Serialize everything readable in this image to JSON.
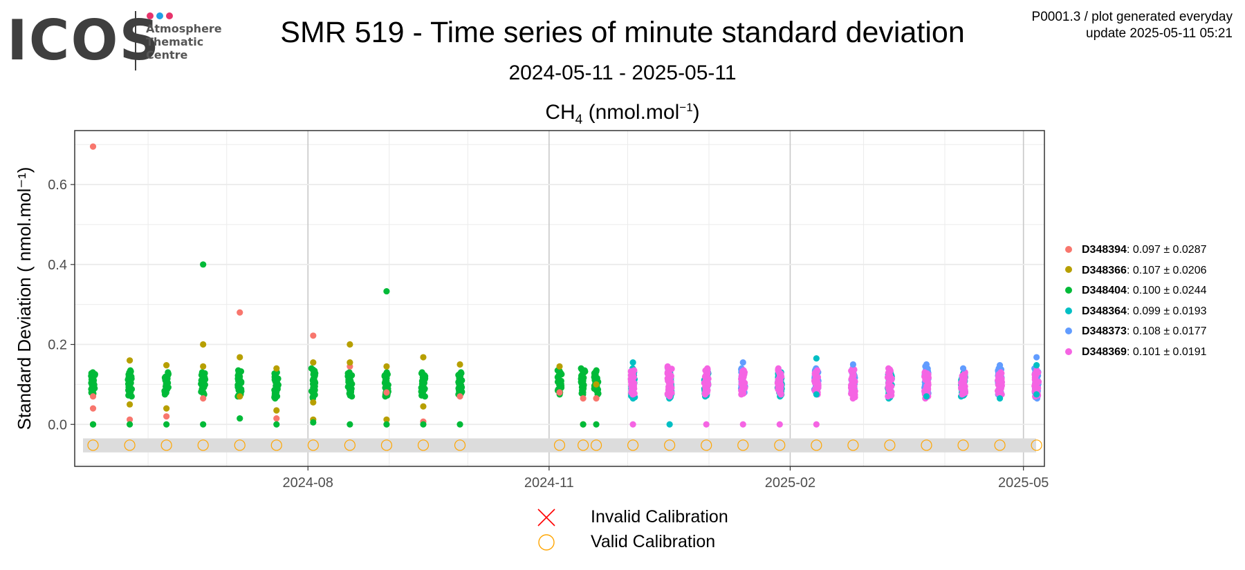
{
  "logo": {
    "text": "ICOS",
    "lines": [
      "Atmosphere",
      "Thematic",
      "Centre"
    ],
    "dot_colors": [
      "#e6336b",
      "#1f9fe6",
      "#e6336b"
    ]
  },
  "header": {
    "title": "SMR 519 - Time series of minute standard deviation",
    "subtitle": "2024-05-11 - 2025-05-11",
    "var_main": "CH",
    "var_sub": "4",
    "var_unit": " (nmol.mol",
    "var_sup": "−1",
    "var_close": ")",
    "meta_line1": "P0001.3 / plot generated everyday",
    "meta_line2": "update  2025-05-11 05:21"
  },
  "chart_data": {
    "type": "scatter",
    "ylabel": "Standard Deviation ( nmol.mol⁻¹)",
    "xlim": [
      "2024-05-04",
      "2025-05-09"
    ],
    "ylim": [
      -0.105,
      0.735
    ],
    "x_ticks": [
      {
        "date": "2024-08-01",
        "label": "2024-08"
      },
      {
        "date": "2024-11-01",
        "label": "2024-11"
      },
      {
        "date": "2025-02-01",
        "label": "2025-02"
      },
      {
        "date": "2025-05-01",
        "label": "2025-05"
      }
    ],
    "y_ticks": [
      0.0,
      0.2,
      0.4,
      0.6
    ],
    "y_tick_labels": [
      "0.0",
      "0.2",
      "0.4",
      "0.6"
    ],
    "grid": true,
    "legend_position": "right",
    "series": [
      {
        "name": "D348394",
        "color": "#f8766d",
        "mean": "0.097",
        "sd": "0.0287",
        "points": [
          [
            "2024-05-11",
            0.695
          ],
          [
            "2024-05-11",
            0.07
          ],
          [
            "2024-05-11",
            0.04
          ],
          [
            "2024-05-25",
            0.012
          ],
          [
            "2024-06-08",
            0.02
          ],
          [
            "2024-06-22",
            0.065
          ],
          [
            "2024-07-06",
            0.28
          ],
          [
            "2024-07-20",
            0.015
          ],
          [
            "2024-08-03",
            0.222
          ],
          [
            "2024-08-17",
            0.145
          ],
          [
            "2024-08-31",
            0.08
          ],
          [
            "2024-09-14",
            0.007
          ],
          [
            "2024-09-28",
            0.07
          ],
          [
            "2024-11-05",
            0.08
          ],
          [
            "2024-11-14",
            0.065
          ],
          [
            "2024-11-19",
            0.065
          ]
        ]
      },
      {
        "name": "D348366",
        "color": "#b79f00",
        "mean": "0.107",
        "sd": "0.0206",
        "points": [
          [
            "2024-05-11",
            0.0
          ],
          [
            "2024-05-25",
            0.16
          ],
          [
            "2024-05-25",
            0.05
          ],
          [
            "2024-06-08",
            0.148
          ],
          [
            "2024-06-08",
            0.04
          ],
          [
            "2024-06-22",
            0.2
          ],
          [
            "2024-06-22",
            0.145
          ],
          [
            "2024-07-06",
            0.168
          ],
          [
            "2024-07-06",
            0.07
          ],
          [
            "2024-07-20",
            0.14
          ],
          [
            "2024-07-20",
            0.035
          ],
          [
            "2024-08-03",
            0.155
          ],
          [
            "2024-08-03",
            0.055
          ],
          [
            "2024-08-03",
            0.012
          ],
          [
            "2024-08-17",
            0.2
          ],
          [
            "2024-08-17",
            0.155
          ],
          [
            "2024-08-31",
            0.145
          ],
          [
            "2024-08-31",
            0.012
          ],
          [
            "2024-09-14",
            0.168
          ],
          [
            "2024-09-14",
            0.045
          ],
          [
            "2024-09-28",
            0.15
          ],
          [
            "2024-11-05",
            0.145
          ],
          [
            "2024-11-14",
            0.0
          ],
          [
            "2024-11-19",
            0.1
          ]
        ]
      },
      {
        "name": "D348404",
        "color": "#00ba38",
        "mean": "0.100",
        "sd": "0.0244",
        "points": [
          [
            "2024-05-11",
            0.0
          ],
          [
            "2024-05-25",
            0.0
          ],
          [
            "2024-06-08",
            0.0
          ],
          [
            "2024-06-22",
            0.4
          ],
          [
            "2024-06-22",
            0.0
          ],
          [
            "2024-07-06",
            0.015
          ],
          [
            "2024-07-20",
            0.0
          ],
          [
            "2024-08-03",
            0.005
          ],
          [
            "2024-08-17",
            0.0
          ],
          [
            "2024-08-31",
            0.333
          ],
          [
            "2024-08-31",
            0.0
          ],
          [
            "2024-09-14",
            0.0
          ],
          [
            "2024-09-28",
            0.0
          ],
          [
            "2024-11-14",
            0.0
          ],
          [
            "2024-11-19",
            0.0
          ]
        ]
      },
      {
        "name": "D348364",
        "color": "#00bfc4",
        "mean": "0.099",
        "sd": "0.0193",
        "points": [
          [
            "2024-12-03",
            0.155
          ],
          [
            "2024-12-17",
            0.0
          ],
          [
            "2025-02-11",
            0.165
          ],
          [
            "2025-02-11",
            0.075
          ],
          [
            "2025-03-25",
            0.07
          ],
          [
            "2025-04-22",
            0.065
          ],
          [
            "2025-05-06",
            0.148
          ],
          [
            "2025-05-06",
            0.075
          ]
        ]
      },
      {
        "name": "D348373",
        "color": "#619cff",
        "mean": "0.108",
        "sd": "0.0177",
        "points": [
          [
            "2025-01-14",
            0.155
          ],
          [
            "2025-02-25",
            0.15
          ],
          [
            "2025-03-25",
            0.15
          ],
          [
            "2025-04-08",
            0.14
          ],
          [
            "2025-04-22",
            0.148
          ],
          [
            "2025-05-06",
            0.168
          ]
        ]
      },
      {
        "name": "D348369",
        "color": "#f564e3",
        "mean": "0.101",
        "sd": "0.0191",
        "points": [
          [
            "2024-12-03",
            0.0
          ],
          [
            "2024-12-31",
            0.0
          ],
          [
            "2025-01-14",
            0.0
          ],
          [
            "2025-01-28",
            0.0
          ],
          [
            "2025-02-11",
            0.0
          ]
        ]
      }
    ],
    "clusters": [
      {
        "date": "2024-05-11",
        "color": "#00ba38",
        "min": 0.075,
        "max": 0.13
      },
      {
        "date": "2024-05-25",
        "color": "#00ba38",
        "min": 0.07,
        "max": 0.135
      },
      {
        "date": "2024-06-08",
        "color": "#00ba38",
        "min": 0.075,
        "max": 0.13
      },
      {
        "date": "2024-06-22",
        "color": "#00ba38",
        "min": 0.075,
        "max": 0.13
      },
      {
        "date": "2024-07-06",
        "color": "#00ba38",
        "min": 0.07,
        "max": 0.135
      },
      {
        "date": "2024-07-20",
        "color": "#00ba38",
        "min": 0.065,
        "max": 0.13
      },
      {
        "date": "2024-08-03",
        "color": "#00ba38",
        "min": 0.065,
        "max": 0.14
      },
      {
        "date": "2024-08-17",
        "color": "#00ba38",
        "min": 0.07,
        "max": 0.13
      },
      {
        "date": "2024-08-31",
        "color": "#00ba38",
        "min": 0.07,
        "max": 0.13
      },
      {
        "date": "2024-09-14",
        "color": "#00ba38",
        "min": 0.07,
        "max": 0.13
      },
      {
        "date": "2024-09-28",
        "color": "#00ba38",
        "min": 0.075,
        "max": 0.13
      },
      {
        "date": "2024-11-05",
        "color": "#00ba38",
        "min": 0.075,
        "max": 0.135
      },
      {
        "date": "2024-11-14",
        "color": "#00ba38",
        "min": 0.075,
        "max": 0.14
      },
      {
        "date": "2024-11-19",
        "color": "#00ba38",
        "min": 0.075,
        "max": 0.135
      },
      {
        "date": "2024-12-03",
        "color": "#00bfc4",
        "min": 0.065,
        "max": 0.14
      },
      {
        "date": "2024-12-03",
        "color": "#f564e3",
        "min": 0.075,
        "max": 0.135
      },
      {
        "date": "2024-12-17",
        "color": "#00bfc4",
        "min": 0.065,
        "max": 0.14
      },
      {
        "date": "2024-12-17",
        "color": "#f564e3",
        "min": 0.07,
        "max": 0.145
      },
      {
        "date": "2024-12-31",
        "color": "#00bfc4",
        "min": 0.07,
        "max": 0.13
      },
      {
        "date": "2024-12-31",
        "color": "#f564e3",
        "min": 0.075,
        "max": 0.14
      },
      {
        "date": "2025-01-14",
        "color": "#619cff",
        "min": 0.08,
        "max": 0.14
      },
      {
        "date": "2025-01-14",
        "color": "#f564e3",
        "min": 0.075,
        "max": 0.135
      },
      {
        "date": "2025-01-28",
        "color": "#00bfc4",
        "min": 0.07,
        "max": 0.13
      },
      {
        "date": "2025-01-28",
        "color": "#f564e3",
        "min": 0.075,
        "max": 0.14
      },
      {
        "date": "2025-02-11",
        "color": "#619cff",
        "min": 0.08,
        "max": 0.14
      },
      {
        "date": "2025-02-11",
        "color": "#f564e3",
        "min": 0.075,
        "max": 0.135
      },
      {
        "date": "2025-02-25",
        "color": "#619cff",
        "min": 0.075,
        "max": 0.14
      },
      {
        "date": "2025-02-25",
        "color": "#f564e3",
        "min": 0.065,
        "max": 0.14
      },
      {
        "date": "2025-03-11",
        "color": "#00bfc4",
        "min": 0.065,
        "max": 0.13
      },
      {
        "date": "2025-03-11",
        "color": "#f564e3",
        "min": 0.07,
        "max": 0.14
      },
      {
        "date": "2025-03-25",
        "color": "#619cff",
        "min": 0.075,
        "max": 0.145
      },
      {
        "date": "2025-03-25",
        "color": "#f564e3",
        "min": 0.065,
        "max": 0.13
      },
      {
        "date": "2025-04-08",
        "color": "#00bfc4",
        "min": 0.07,
        "max": 0.13
      },
      {
        "date": "2025-04-08",
        "color": "#f564e3",
        "min": 0.075,
        "max": 0.13
      },
      {
        "date": "2025-04-22",
        "color": "#619cff",
        "min": 0.075,
        "max": 0.14
      },
      {
        "date": "2025-04-22",
        "color": "#f564e3",
        "min": 0.075,
        "max": 0.13
      },
      {
        "date": "2025-05-06",
        "color": "#619cff",
        "min": 0.065,
        "max": 0.14
      },
      {
        "date": "2025-05-06",
        "color": "#f564e3",
        "min": 0.07,
        "max": 0.135
      }
    ],
    "calibration_band": {
      "ymin": -0.07,
      "ymax": -0.035,
      "color": "#dcdcdc"
    },
    "calibration": {
      "value": -0.052,
      "valid_color": "#ffa500",
      "invalid_color": "#ff0000",
      "valid_dates": [
        "2024-05-11",
        "2024-05-25",
        "2024-06-08",
        "2024-06-22",
        "2024-07-06",
        "2024-07-20",
        "2024-08-03",
        "2024-08-17",
        "2024-08-31",
        "2024-09-14",
        "2024-09-28",
        "2024-11-05",
        "2024-11-14",
        "2024-11-19",
        "2024-12-03",
        "2024-12-17",
        "2024-12-31",
        "2025-01-14",
        "2025-01-28",
        "2025-02-11",
        "2025-02-25",
        "2025-03-11",
        "2025-03-25",
        "2025-04-08",
        "2025-04-22",
        "2025-05-06"
      ],
      "invalid_dates": []
    }
  },
  "cal_legend": {
    "invalid_label": "Invalid Calibration",
    "valid_label": "Valid Calibration"
  }
}
